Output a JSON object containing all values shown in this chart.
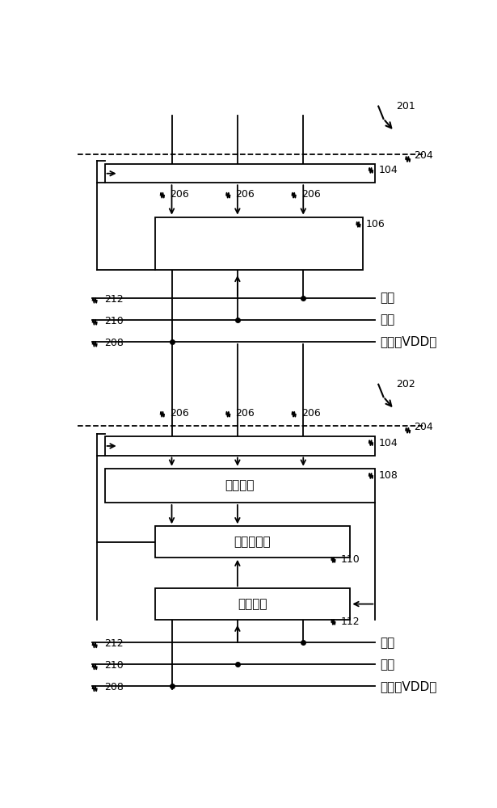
{
  "bg_color": "#ffffff",
  "line_color": "#000000",
  "box_fill": "#ffffff",
  "box_edge": "#000000",
  "fs_ref": 9,
  "fs_cn": 11,
  "chinese": {
    "exposure": "曝光",
    "ground": "接地",
    "power": "功率（VDD）",
    "sensing": "感测元件",
    "pixel_driver": "像素驱动器",
    "pixel_control": "像素控制"
  }
}
